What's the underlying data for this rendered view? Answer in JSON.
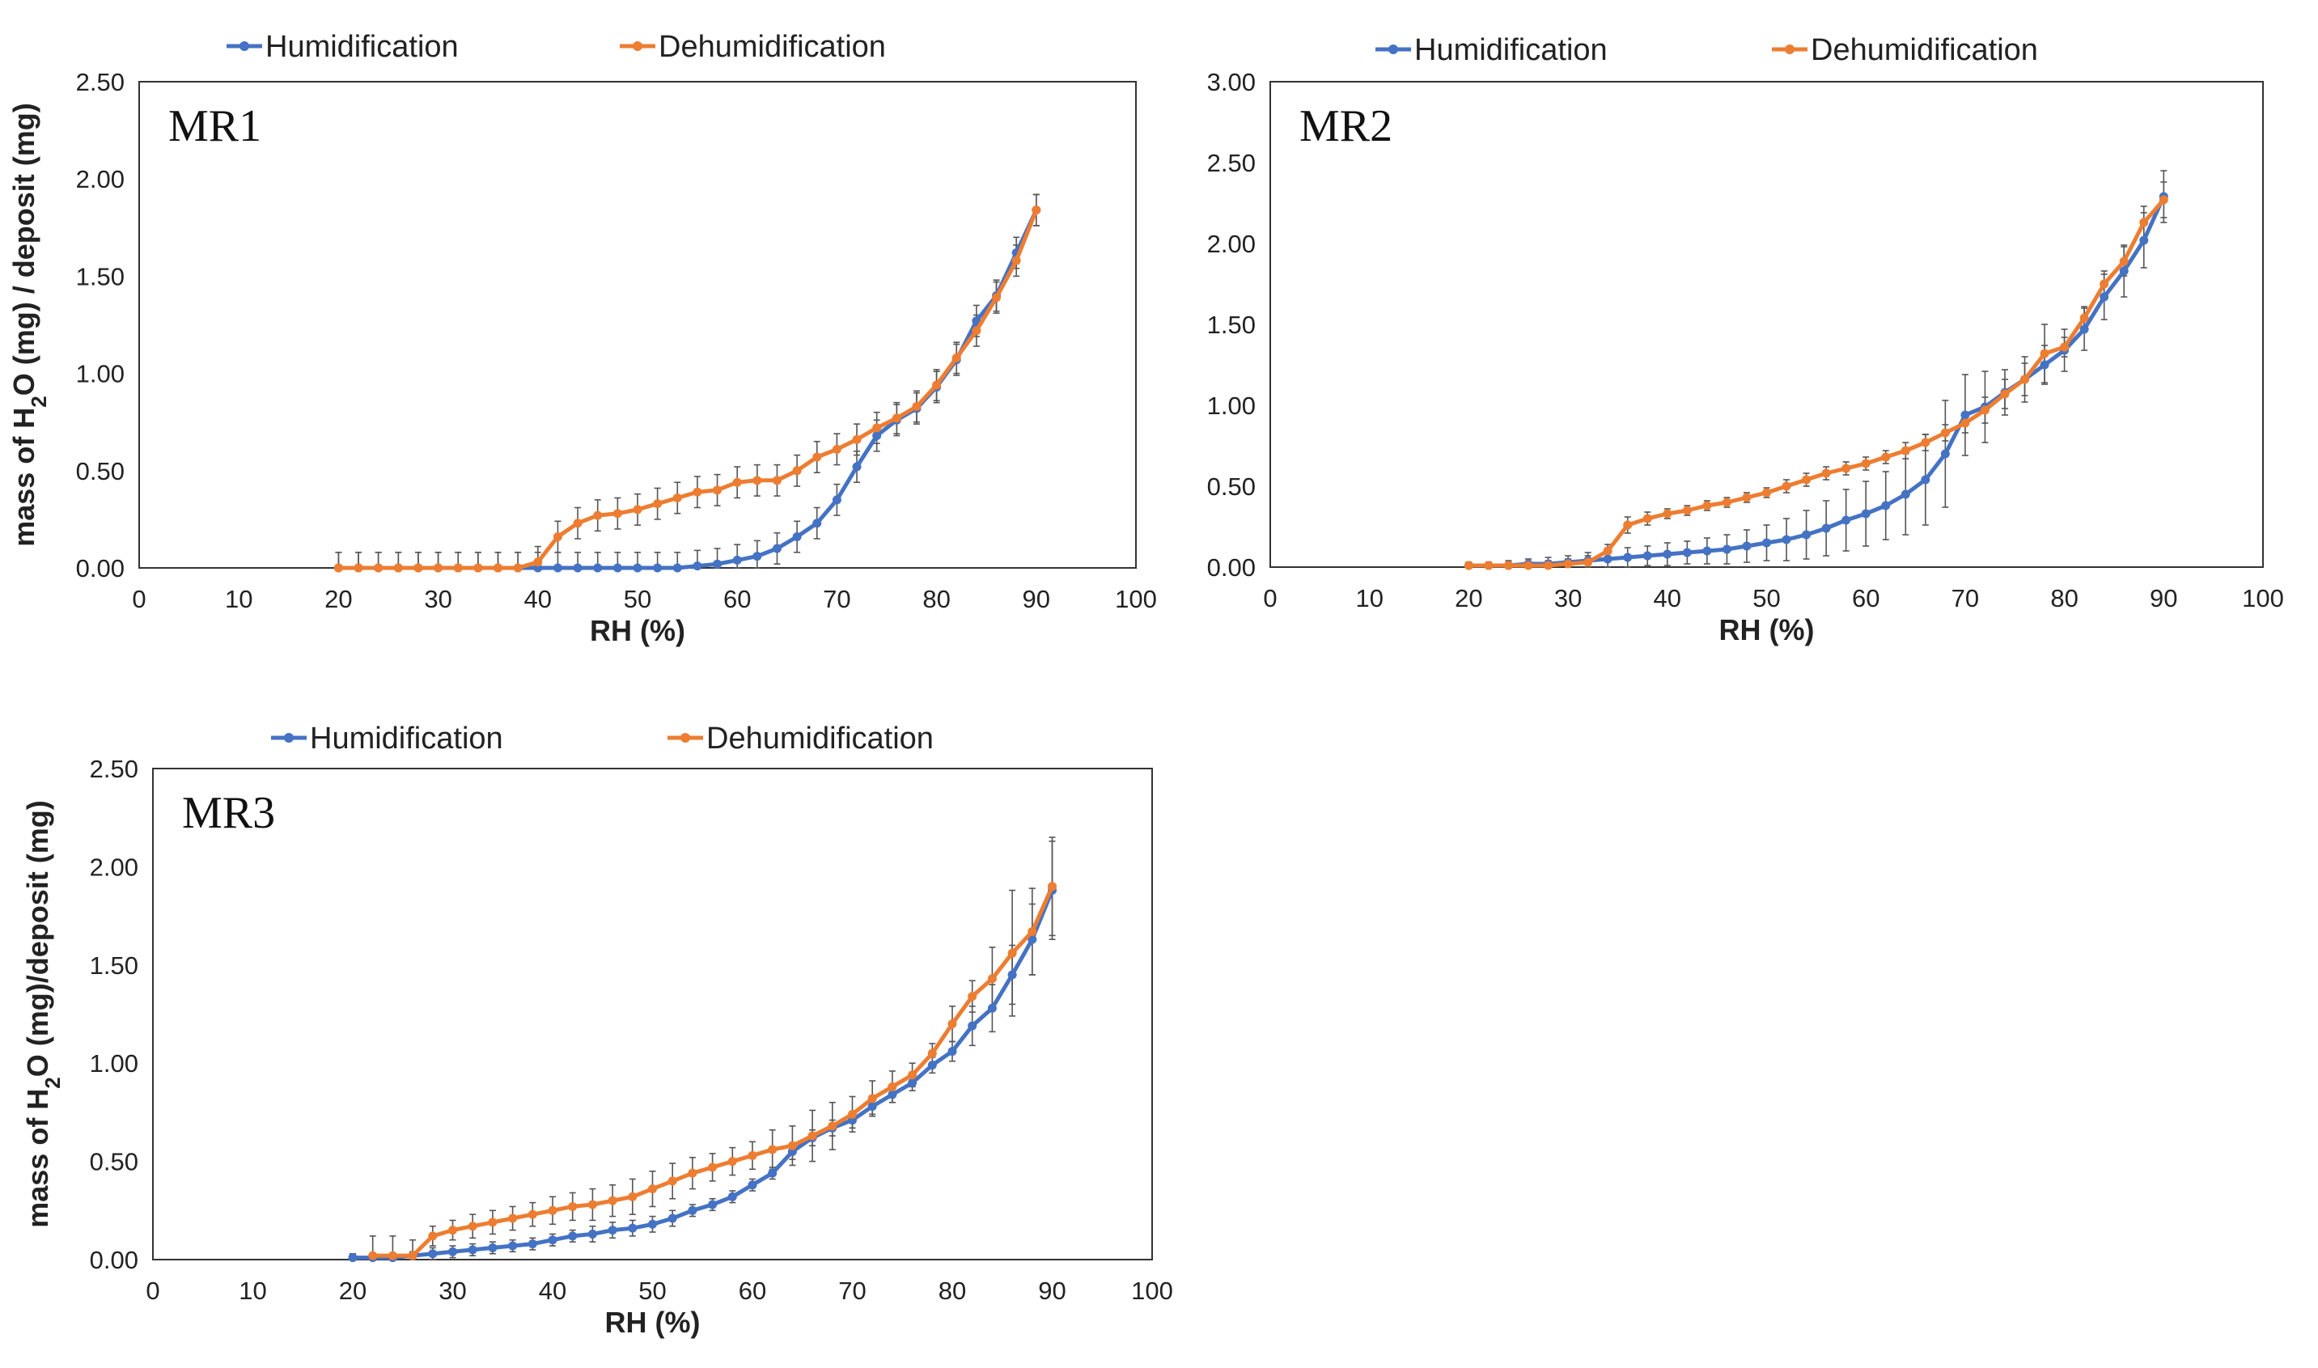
{
  "colors": {
    "humidification": "#4472C4",
    "dehumidification": "#ED7D31",
    "errorbar": "#555555",
    "frame": "#333333"
  },
  "chart_data": [
    {
      "type": "line",
      "panel_label": "MR1",
      "xlabel": "RH (%)",
      "ylabel_parts": [
        "mass of H",
        "2",
        "O (mg) / deposit (mg)"
      ],
      "xlim": [
        0,
        100
      ],
      "ylim": [
        0,
        2.5
      ],
      "x_ticks": [
        "0",
        "10",
        "20",
        "30",
        "40",
        "50",
        "60",
        "70",
        "80",
        "90",
        "100"
      ],
      "y_ticks": [
        "0.00",
        "0.50",
        "1.00",
        "1.50",
        "2.00",
        "2.50"
      ],
      "legend": [
        "Humidification",
        "Dehumidification"
      ],
      "series": [
        {
          "name": "Humidification",
          "color": "#4472C4",
          "x": [
            20,
            22,
            24,
            26,
            28,
            30,
            32,
            34,
            36,
            38,
            40,
            42,
            44,
            46,
            48,
            50,
            52,
            54,
            56,
            58,
            60,
            62,
            64,
            66,
            68,
            70,
            72,
            74,
            76,
            78,
            80,
            82,
            84,
            86,
            88,
            90
          ],
          "y": [
            0,
            0,
            0,
            0,
            0,
            0,
            0,
            0,
            0,
            0,
            0,
            0,
            0,
            0,
            0,
            0,
            0,
            0,
            0.01,
            0.02,
            0.04,
            0.06,
            0.1,
            0.16,
            0.23,
            0.35,
            0.52,
            0.68,
            0.76,
            0.82,
            0.93,
            1.07,
            1.27,
            1.4,
            1.62,
            1.84
          ],
          "err": [
            0.08,
            0.08,
            0.08,
            0.08,
            0.08,
            0.08,
            0.08,
            0.08,
            0.08,
            0.08,
            0.08,
            0.08,
            0.08,
            0.08,
            0.08,
            0.08,
            0.08,
            0.08,
            0.08,
            0.08,
            0.08,
            0.08,
            0.08,
            0.08,
            0.08,
            0.08,
            0.08,
            0.08,
            0.08,
            0.08,
            0.08,
            0.08,
            0.08,
            0.08,
            0.08,
            0.08
          ]
        },
        {
          "name": "Dehumidification",
          "color": "#ED7D31",
          "x": [
            20,
            22,
            24,
            26,
            28,
            30,
            32,
            34,
            36,
            38,
            40,
            42,
            44,
            46,
            48,
            50,
            52,
            54,
            56,
            58,
            60,
            62,
            64,
            66,
            68,
            70,
            72,
            74,
            76,
            78,
            80,
            82,
            84,
            86,
            88,
            90
          ],
          "y": [
            0,
            0,
            0,
            0,
            0,
            0,
            0,
            0,
            0,
            0,
            0.03,
            0.16,
            0.23,
            0.27,
            0.28,
            0.3,
            0.33,
            0.36,
            0.39,
            0.4,
            0.44,
            0.45,
            0.45,
            0.5,
            0.57,
            0.61,
            0.66,
            0.72,
            0.77,
            0.83,
            0.94,
            1.08,
            1.22,
            1.39,
            1.58,
            1.84
          ],
          "err": [
            0.08,
            0.08,
            0.08,
            0.08,
            0.08,
            0.08,
            0.08,
            0.08,
            0.08,
            0.08,
            0.08,
            0.08,
            0.08,
            0.08,
            0.08,
            0.08,
            0.08,
            0.08,
            0.08,
            0.08,
            0.08,
            0.08,
            0.08,
            0.08,
            0.08,
            0.08,
            0.08,
            0.08,
            0.08,
            0.08,
            0.08,
            0.08,
            0.08,
            0.08,
            0.08,
            0.08
          ]
        }
      ]
    },
    {
      "type": "line",
      "panel_label": "MR2",
      "xlabel": "RH (%)",
      "ylabel_parts": [
        "",
        "",
        ""
      ],
      "xlim": [
        0,
        100
      ],
      "ylim": [
        0,
        3.0
      ],
      "x_ticks": [
        "0",
        "10",
        "20",
        "30",
        "40",
        "50",
        "60",
        "70",
        "80",
        "90",
        "100"
      ],
      "y_ticks": [
        "0.00",
        "0.50",
        "1.00",
        "1.50",
        "2.00",
        "2.50",
        "3.00"
      ],
      "legend": [
        "Humidification",
        "Dehumidification"
      ],
      "series": [
        {
          "name": "Humidification",
          "color": "#4472C4",
          "x": [
            20,
            22,
            24,
            26,
            28,
            30,
            32,
            34,
            36,
            38,
            40,
            42,
            44,
            46,
            48,
            50,
            52,
            54,
            56,
            58,
            60,
            62,
            64,
            66,
            68,
            70,
            72,
            74,
            76,
            78,
            80,
            82,
            84,
            86,
            88,
            90
          ],
          "y": [
            0.01,
            0.01,
            0.01,
            0.02,
            0.02,
            0.03,
            0.04,
            0.05,
            0.06,
            0.07,
            0.08,
            0.09,
            0.1,
            0.11,
            0.13,
            0.15,
            0.17,
            0.2,
            0.24,
            0.29,
            0.33,
            0.38,
            0.45,
            0.54,
            0.7,
            0.94,
            0.99,
            1.08,
            1.16,
            1.25,
            1.34,
            1.47,
            1.67,
            1.83,
            2.02,
            2.29
          ],
          "err": [
            0.02,
            0.02,
            0.03,
            0.03,
            0.04,
            0.04,
            0.05,
            0.05,
            0.06,
            0.06,
            0.07,
            0.07,
            0.08,
            0.09,
            0.1,
            0.11,
            0.13,
            0.15,
            0.17,
            0.19,
            0.2,
            0.21,
            0.25,
            0.28,
            0.33,
            0.25,
            0.22,
            0.14,
            0.14,
            0.12,
            0.13,
            0.13,
            0.14,
            0.16,
            0.17,
            0.16
          ]
        },
        {
          "name": "Dehumidification",
          "color": "#ED7D31",
          "x": [
            20,
            22,
            24,
            26,
            28,
            30,
            32,
            34,
            36,
            38,
            40,
            42,
            44,
            46,
            48,
            50,
            52,
            54,
            56,
            58,
            60,
            62,
            64,
            66,
            68,
            70,
            72,
            74,
            76,
            78,
            80,
            82,
            84,
            86,
            88,
            90
          ],
          "y": [
            0.01,
            0.01,
            0.01,
            0.01,
            0.01,
            0.02,
            0.03,
            0.1,
            0.26,
            0.3,
            0.33,
            0.35,
            0.38,
            0.4,
            0.43,
            0.46,
            0.5,
            0.54,
            0.58,
            0.61,
            0.64,
            0.68,
            0.72,
            0.77,
            0.83,
            0.89,
            0.97,
            1.07,
            1.16,
            1.32,
            1.36,
            1.54,
            1.75,
            1.89,
            2.13,
            2.27
          ],
          "err": [
            0.02,
            0.02,
            0.02,
            0.02,
            0.03,
            0.03,
            0.04,
            0.04,
            0.05,
            0.04,
            0.03,
            0.03,
            0.03,
            0.03,
            0.03,
            0.03,
            0.04,
            0.04,
            0.04,
            0.04,
            0.04,
            0.04,
            0.05,
            0.05,
            0.05,
            0.06,
            0.08,
            0.09,
            0.1,
            0.18,
            0.06,
            0.07,
            0.08,
            0.09,
            0.1,
            0.11
          ]
        }
      ]
    },
    {
      "type": "line",
      "panel_label": "MR3",
      "xlabel": "RH (%)",
      "ylabel_parts": [
        "mass of H",
        "2",
        "O (mg)/deposit (mg)"
      ],
      "xlim": [
        0,
        100
      ],
      "ylim": [
        0,
        2.5
      ],
      "x_ticks": [
        "0",
        "10",
        "20",
        "30",
        "40",
        "50",
        "60",
        "70",
        "80",
        "90",
        "100"
      ],
      "y_ticks": [
        "0.00",
        "0.50",
        "1.00",
        "1.50",
        "2.00",
        "2.50"
      ],
      "legend": [
        "Humidification",
        "Dehumidification"
      ],
      "series": [
        {
          "name": "Humidification",
          "color": "#4472C4",
          "x": [
            20,
            22,
            24,
            26,
            28,
            30,
            32,
            34,
            36,
            38,
            40,
            42,
            44,
            46,
            48,
            50,
            52,
            54,
            56,
            58,
            60,
            62,
            64,
            66,
            68,
            70,
            72,
            74,
            76,
            78,
            80,
            82,
            84,
            86,
            88,
            90
          ],
          "y": [
            0.01,
            0.01,
            0.01,
            0.02,
            0.03,
            0.04,
            0.05,
            0.06,
            0.07,
            0.08,
            0.1,
            0.12,
            0.13,
            0.15,
            0.16,
            0.18,
            0.21,
            0.25,
            0.28,
            0.32,
            0.38,
            0.44,
            0.55,
            0.62,
            0.67,
            0.71,
            0.78,
            0.84,
            0.9,
            0.99,
            1.06,
            1.19,
            1.28,
            1.45,
            1.63,
            1.88
          ],
          "err": [
            0.02,
            0.02,
            0.02,
            0.02,
            0.03,
            0.03,
            0.03,
            0.03,
            0.03,
            0.03,
            0.03,
            0.03,
            0.04,
            0.04,
            0.04,
            0.04,
            0.04,
            0.03,
            0.03,
            0.03,
            0.03,
            0.03,
            0.04,
            0.04,
            0.04,
            0.04,
            0.04,
            0.04,
            0.04,
            0.04,
            0.05,
            0.1,
            0.12,
            0.15,
            0.18,
            0.25
          ]
        },
        {
          "name": "Dehumidification",
          "color": "#ED7D31",
          "x": [
            22,
            24,
            26,
            28,
            30,
            32,
            34,
            36,
            38,
            40,
            42,
            44,
            46,
            48,
            50,
            52,
            54,
            56,
            58,
            60,
            62,
            64,
            66,
            68,
            70,
            72,
            74,
            76,
            78,
            80,
            82,
            84,
            86,
            88,
            90
          ],
          "y": [
            0.02,
            0.02,
            0.02,
            0.12,
            0.15,
            0.17,
            0.19,
            0.21,
            0.23,
            0.25,
            0.27,
            0.28,
            0.3,
            0.32,
            0.36,
            0.4,
            0.44,
            0.47,
            0.5,
            0.53,
            0.56,
            0.58,
            0.63,
            0.68,
            0.74,
            0.82,
            0.88,
            0.94,
            1.05,
            1.2,
            1.34,
            1.43,
            1.56,
            1.67,
            1.9
          ],
          "err": [
            0.1,
            0.1,
            0.08,
            0.05,
            0.05,
            0.06,
            0.06,
            0.06,
            0.06,
            0.07,
            0.07,
            0.08,
            0.08,
            0.09,
            0.09,
            0.09,
            0.08,
            0.07,
            0.07,
            0.07,
            0.1,
            0.1,
            0.13,
            0.12,
            0.09,
            0.09,
            0.08,
            0.06,
            0.05,
            0.09,
            0.08,
            0.16,
            0.32,
            0.22,
            0.25
          ]
        }
      ]
    }
  ]
}
